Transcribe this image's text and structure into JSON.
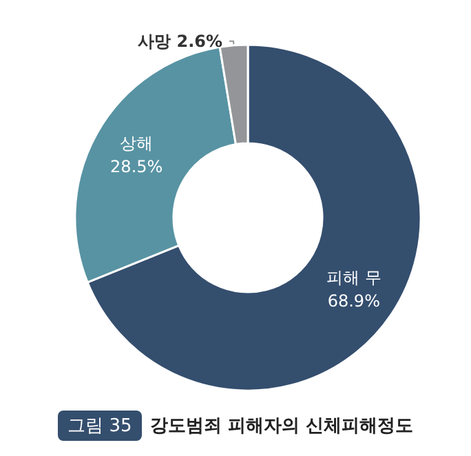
{
  "chart_data": {
    "type": "donut",
    "title": "강도범죄 피해자의 신체피해정도",
    "annotations": [
      "그림 35"
    ],
    "categories": [
      "피해 무",
      "상해",
      "사망"
    ],
    "values": [
      68.9,
      28.5,
      2.6
    ],
    "colors": [
      "#344e6e",
      "#5893a3",
      "#939598"
    ],
    "value_labels": [
      "68.9%",
      "28.5%",
      "2.6%"
    ],
    "legend": false
  }
}
